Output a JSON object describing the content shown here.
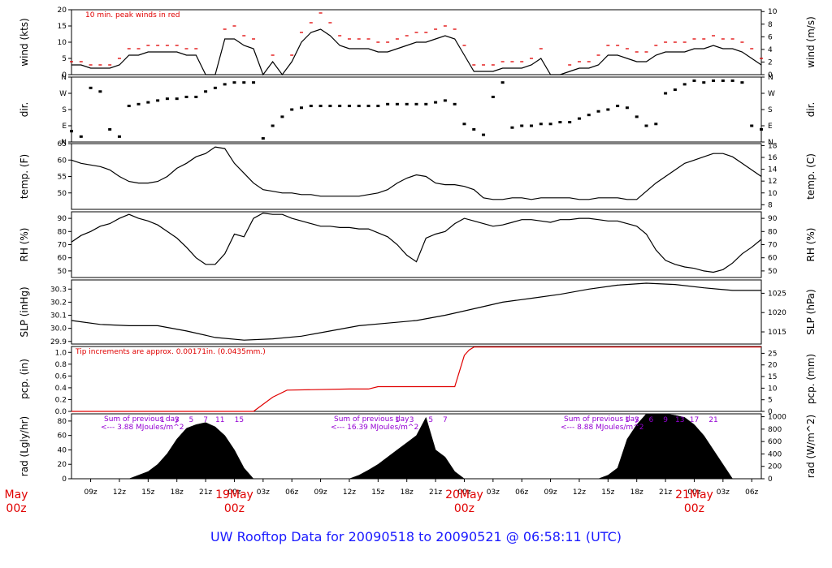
{
  "title": "UW Rooftop Data for 20090518  to  20090521 @ 06:58:11  (UTC)",
  "colors": {
    "title": "#1a1aff",
    "peak": "#e00000",
    "precip": "#e00000",
    "radiation_note": "#9400d3",
    "series": "#000000"
  },
  "x_axis": {
    "hour_ticks": [
      "09z",
      "12z",
      "15z",
      "18z",
      "21z",
      "00z",
      "03z",
      "06z",
      "09z",
      "12z",
      "15z",
      "18z",
      "21z",
      "00z",
      "03z",
      "06z",
      "09z",
      "12z",
      "15z",
      "18z",
      "21z",
      "00z",
      "03z",
      "06z"
    ],
    "day_labels": [
      {
        "date": "May",
        "time": "00z",
        "hour": 0
      },
      {
        "date": "19May",
        "time": "00z",
        "hour": 24
      },
      {
        "date": "20May",
        "time": "00z",
        "hour": 48
      },
      {
        "date": "21May",
        "time": "00z",
        "hour": 72
      }
    ],
    "range_hours": [
      7,
      79
    ]
  },
  "chart_data": [
    {
      "type": "line",
      "name": "wind",
      "ylabel": "wind (kts)",
      "ylabel_right": "wind (m/s)",
      "ylim": [
        0,
        20
      ],
      "yticks": [
        0,
        5,
        10,
        15,
        20
      ],
      "yticks_right": [
        0,
        2,
        4,
        6,
        8,
        10
      ],
      "annotation": "10 min. peak winds in red",
      "x_hours": [
        7,
        8,
        9,
        10,
        11,
        12,
        13,
        14,
        15,
        16,
        17,
        18,
        19,
        20,
        21,
        22,
        23,
        24,
        25,
        26,
        27,
        28,
        29,
        30,
        31,
        32,
        33,
        34,
        35,
        36,
        37,
        38,
        39,
        40,
        41,
        42,
        43,
        44,
        45,
        46,
        47,
        48,
        49,
        50,
        51,
        52,
        53,
        54,
        55,
        56,
        57,
        58,
        59,
        60,
        61,
        62,
        63,
        64,
        65,
        66,
        67,
        68,
        69,
        70,
        71,
        72,
        73,
        74,
        75,
        76,
        77,
        78,
        79
      ],
      "values": [
        3,
        3,
        2,
        2,
        2,
        3,
        6,
        6,
        7,
        7,
        7,
        7,
        6,
        6,
        0,
        0,
        11,
        11,
        9,
        8,
        0,
        4,
        0,
        4,
        10,
        13,
        14,
        12,
        9,
        8,
        8,
        8,
        7,
        7,
        8,
        9,
        10,
        10,
        11,
        12,
        11,
        6,
        1,
        1,
        1,
        2,
        2,
        2,
        3,
        5,
        0,
        0,
        1,
        2,
        2,
        3,
        6,
        6,
        5,
        4,
        4,
        6,
        7,
        7,
        7,
        8,
        8,
        9,
        8,
        8,
        7,
        5,
        3
      ],
      "peak": [
        4,
        4,
        3,
        3,
        3,
        5,
        8,
        8,
        9,
        9,
        9,
        9,
        8,
        8,
        0,
        0,
        14,
        15,
        12,
        11,
        0,
        6,
        0,
        6,
        13,
        16,
        19,
        16,
        12,
        11,
        11,
        11,
        10,
        10,
        11,
        12,
        13,
        13,
        14,
        15,
        14,
        9,
        3,
        3,
        3,
        4,
        4,
        4,
        5,
        8,
        0,
        0,
        3,
        4,
        4,
        6,
        9,
        9,
        8,
        7,
        7,
        9,
        10,
        10,
        10,
        11,
        11,
        12,
        11,
        11,
        10,
        8,
        5
      ]
    },
    {
      "type": "scatter",
      "name": "direction",
      "ylabel": "dir.",
      "ylabel_right": "dir.",
      "ylim": [
        0,
        360
      ],
      "yticks": [
        "N",
        "E",
        "S",
        "W",
        "N"
      ],
      "x_hours": [
        7,
        8,
        9,
        10,
        11,
        12,
        13,
        14,
        15,
        16,
        17,
        18,
        19,
        20,
        21,
        22,
        23,
        24,
        25,
        26,
        27,
        28,
        29,
        30,
        31,
        32,
        33,
        34,
        35,
        36,
        37,
        38,
        39,
        40,
        41,
        42,
        43,
        44,
        45,
        46,
        47,
        48,
        49,
        50,
        51,
        52,
        53,
        54,
        55,
        56,
        57,
        58,
        59,
        60,
        61,
        62,
        63,
        64,
        65,
        66,
        67,
        68,
        69,
        70,
        71,
        72,
        73,
        74,
        75,
        76,
        77,
        78,
        79
      ],
      "values": [
        60,
        30,
        300,
        280,
        70,
        30,
        200,
        210,
        220,
        230,
        240,
        240,
        250,
        250,
        280,
        300,
        320,
        330,
        330,
        330,
        20,
        90,
        140,
        180,
        190,
        200,
        200,
        200,
        200,
        200,
        200,
        200,
        200,
        210,
        210,
        210,
        210,
        210,
        220,
        230,
        210,
        100,
        70,
        40,
        250,
        330,
        80,
        90,
        90,
        100,
        100,
        110,
        110,
        130,
        150,
        170,
        180,
        200,
        190,
        140,
        90,
        100,
        270,
        290,
        320,
        340,
        330,
        340,
        340,
        340,
        330,
        90,
        70
      ]
    },
    {
      "type": "line",
      "name": "temperature",
      "ylabel": "temp. (F)",
      "ylabel_right": "temp. (C)",
      "ylim": [
        45,
        65
      ],
      "yticks": [
        50,
        55,
        60,
        65
      ],
      "yticks_right": [
        8,
        10,
        12,
        14,
        16,
        18
      ],
      "x_hours": [
        7,
        8,
        9,
        10,
        11,
        12,
        13,
        14,
        15,
        16,
        17,
        18,
        19,
        20,
        21,
        22,
        23,
        24,
        25,
        26,
        27,
        28,
        29,
        30,
        31,
        32,
        33,
        34,
        35,
        36,
        37,
        38,
        39,
        40,
        41,
        42,
        43,
        44,
        45,
        46,
        47,
        48,
        49,
        50,
        51,
        52,
        53,
        54,
        55,
        56,
        57,
        58,
        59,
        60,
        61,
        62,
        63,
        64,
        65,
        66,
        67,
        68,
        69,
        70,
        71,
        72,
        73,
        74,
        75,
        76,
        77,
        78,
        79
      ],
      "values": [
        60,
        59,
        58.5,
        58,
        57,
        55,
        53.5,
        53,
        53,
        53.5,
        55,
        57.5,
        59,
        61,
        62,
        64,
        63.5,
        59,
        56,
        53,
        51,
        50.5,
        50,
        50,
        49.5,
        49.5,
        49,
        49,
        49,
        49,
        49,
        49.5,
        50,
        51,
        53,
        54.5,
        55.5,
        55,
        53,
        52.5,
        52.5,
        52,
        51,
        48.5,
        48,
        48,
        48.5,
        48.5,
        48,
        48.5,
        48.5,
        48.5,
        48.5,
        48,
        48,
        48.5,
        48.5,
        48.5,
        48,
        48,
        50.5,
        53,
        55,
        57,
        59,
        60,
        61,
        62,
        62,
        61,
        59,
        57,
        55
      ]
    },
    {
      "type": "line",
      "name": "relative_humidity",
      "ylabel": "RH (%)",
      "ylabel_right": "RH (%)",
      "ylim": [
        45,
        95
      ],
      "yticks": [
        50,
        60,
        70,
        80,
        90
      ],
      "x_hours": [
        7,
        8,
        9,
        10,
        11,
        12,
        13,
        14,
        15,
        16,
        17,
        18,
        19,
        20,
        21,
        22,
        23,
        24,
        25,
        26,
        27,
        28,
        29,
        30,
        31,
        32,
        33,
        34,
        35,
        36,
        37,
        38,
        39,
        40,
        41,
        42,
        43,
        44,
        45,
        46,
        47,
        48,
        49,
        50,
        51,
        52,
        53,
        54,
        55,
        56,
        57,
        58,
        59,
        60,
        61,
        62,
        63,
        64,
        65,
        66,
        67,
        68,
        69,
        70,
        71,
        72,
        73,
        74,
        75,
        76,
        77,
        78,
        79
      ],
      "values": [
        72,
        77,
        80,
        84,
        86,
        90,
        93,
        90,
        88,
        85,
        80,
        75,
        68,
        60,
        55,
        55,
        63,
        78,
        76,
        90,
        94,
        93,
        93,
        90,
        88,
        86,
        84,
        84,
        83,
        83,
        82,
        82,
        79,
        76,
        70,
        62,
        57,
        75,
        78,
        80,
        86,
        90,
        88,
        86,
        84,
        85,
        87,
        89,
        89,
        88,
        87,
        89,
        89,
        90,
        90,
        89,
        88,
        88,
        86,
        84,
        78,
        66,
        58,
        55,
        53,
        52,
        50,
        49,
        51,
        56,
        63,
        68,
        74
      ]
    },
    {
      "type": "line",
      "name": "sea_level_pressure",
      "ylabel": "SLP (inHg)",
      "ylabel_right": "SLP (hPa)",
      "ylim": [
        29.88,
        30.37
      ],
      "yticks": [
        29.9,
        30.0,
        30.1,
        30.2,
        30.3
      ],
      "yticks_right": [
        1015,
        1020,
        1025
      ],
      "x_hours": [
        7,
        10,
        13,
        16,
        19,
        22,
        25,
        28,
        31,
        34,
        37,
        40,
        43,
        46,
        49,
        52,
        55,
        58,
        61,
        64,
        67,
        70,
        73,
        76,
        79
      ],
      "values": [
        30.06,
        30.03,
        30.02,
        30.02,
        29.98,
        29.93,
        29.91,
        29.92,
        29.94,
        29.98,
        30.02,
        30.04,
        30.06,
        30.1,
        30.15,
        30.2,
        30.23,
        30.26,
        30.3,
        30.33,
        30.345,
        30.335,
        30.31,
        30.29,
        30.29
      ]
    },
    {
      "type": "line",
      "name": "precipitation",
      "ylabel": "pcp. (in)",
      "ylabel_right": "pcp. (mm)",
      "ylim": [
        0,
        1.1
      ],
      "yticks": [
        0.0,
        0.2,
        0.4,
        0.6,
        0.8,
        1.0
      ],
      "yticks_right": [
        0,
        5,
        10,
        15,
        20,
        25
      ],
      "annotation": "Tip increments are approx. 0.00171in. (0.0435mm.)",
      "x_hours": [
        7,
        26,
        28,
        29.5,
        36,
        38,
        39,
        47,
        48,
        48.5,
        49,
        79
      ],
      "values": [
        0.0,
        0.0,
        0.24,
        0.36,
        0.38,
        0.38,
        0.42,
        0.42,
        0.95,
        1.04,
        1.09,
        1.09
      ]
    },
    {
      "type": "area",
      "name": "radiation",
      "ylabel": "rad (Lgly/hr)",
      "ylabel_right": "rad (W/m^2)",
      "ylim": [
        0,
        90
      ],
      "yticks": [
        0,
        20,
        40,
        60,
        80
      ],
      "yticks_right": [
        0,
        200,
        400,
        600,
        800,
        1000
      ],
      "daily_notes": [
        {
          "line1": "Sum of previous day",
          "line2": "<--- 3.88 MJoules/m^2",
          "hour": 7
        },
        {
          "line1": "Sum of previous day",
          "line2": "<--- 16.39 MJoules/m^2",
          "hour": 31
        },
        {
          "line1": "Sum of previous day",
          "line2": "<--- 8.88 MJoules/m^2",
          "hour": 55
        }
      ],
      "hour_markers": [
        {
          "label": "1",
          "hour": 16.5
        },
        {
          "label": "3",
          "hour": 18
        },
        {
          "label": "5",
          "hour": 19.5
        },
        {
          "label": "7",
          "hour": 21
        },
        {
          "label": "11",
          "hour": 22.5
        },
        {
          "label": "15",
          "hour": 24.5
        },
        {
          "label": "1",
          "hour": 41
        },
        {
          "label": "3",
          "hour": 42.5
        },
        {
          "label": "5",
          "hour": 44.5
        },
        {
          "label": "7",
          "hour": 46
        },
        {
          "label": "1",
          "hour": 65
        },
        {
          "label": "3",
          "hour": 66
        },
        {
          "label": "6",
          "hour": 67.5
        },
        {
          "label": "9",
          "hour": 69
        },
        {
          "label": "13",
          "hour": 70.5
        },
        {
          "label": "17",
          "hour": 72
        },
        {
          "label": "21",
          "hour": 74
        }
      ],
      "x_hours": [
        7,
        13,
        14,
        15,
        16,
        17,
        18,
        19,
        20,
        21,
        22,
        23,
        24,
        25,
        26,
        36,
        37,
        38,
        39,
        40,
        41,
        42,
        43,
        44,
        45,
        46,
        47,
        48,
        62,
        63,
        64,
        65,
        66,
        67,
        68,
        69,
        70,
        71,
        72,
        73,
        74,
        75,
        76
      ],
      "values": [
        0,
        0,
        5,
        10,
        20,
        35,
        55,
        70,
        75,
        78,
        72,
        60,
        40,
        15,
        0,
        0,
        5,
        12,
        20,
        30,
        40,
        50,
        60,
        85,
        40,
        30,
        10,
        0,
        0,
        5,
        15,
        55,
        75,
        90,
        90,
        90,
        88,
        85,
        75,
        60,
        40,
        20,
        0
      ]
    }
  ]
}
